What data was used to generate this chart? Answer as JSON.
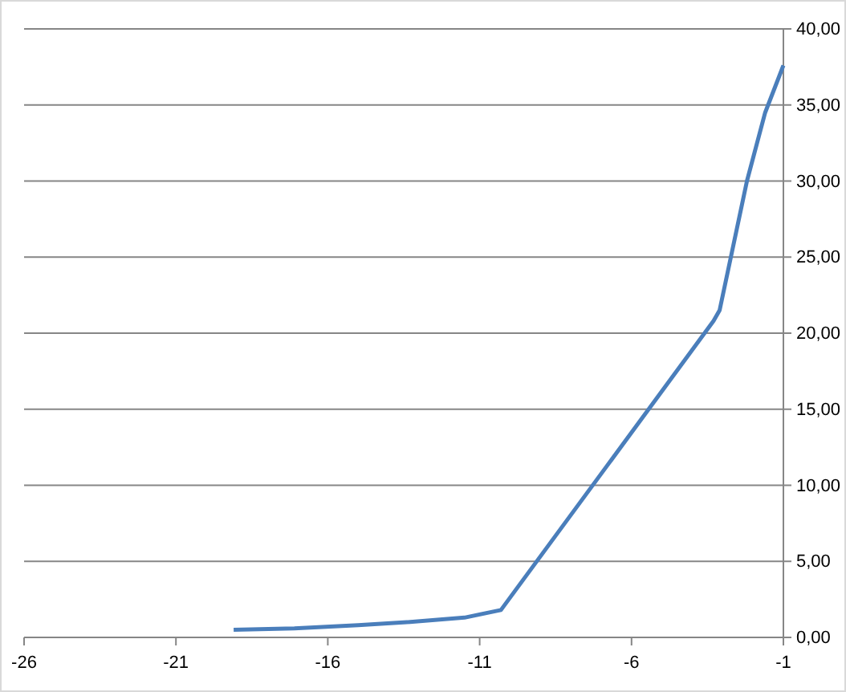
{
  "chart_data": {
    "type": "line",
    "x": [
      -19.1,
      -17.1,
      -15,
      -13.4,
      -11.5,
      -10.3,
      -6.8,
      -3.3,
      -3.1,
      -2.2,
      -1.6,
      -1
    ],
    "series": [
      {
        "color": "#4a7ebb",
        "values": [
          0.5,
          0.6,
          0.8,
          1.0,
          1.3,
          1.8,
          11.3,
          20.8,
          21.5,
          30,
          34.5,
          37.6
        ]
      }
    ],
    "xlim": [
      -26,
      -1
    ],
    "xticks": [
      -26,
      -21,
      -16,
      -11,
      -6,
      -1
    ],
    "ylim": [
      0,
      40
    ],
    "yticks": [
      {
        "value": 0,
        "label": "0,00"
      },
      {
        "value": 5,
        "label": "5,00"
      },
      {
        "value": 10,
        "label": "10,00"
      },
      {
        "value": 15,
        "label": "15,00"
      },
      {
        "value": 20,
        "label": "20,00"
      },
      {
        "value": 25,
        "label": "25,00"
      },
      {
        "value": 30,
        "label": "30,00"
      },
      {
        "value": 35,
        "label": "35,00"
      },
      {
        "value": 40,
        "label": "40,00"
      }
    ],
    "grid": "y",
    "marker": "none",
    "line_style": "solid"
  }
}
